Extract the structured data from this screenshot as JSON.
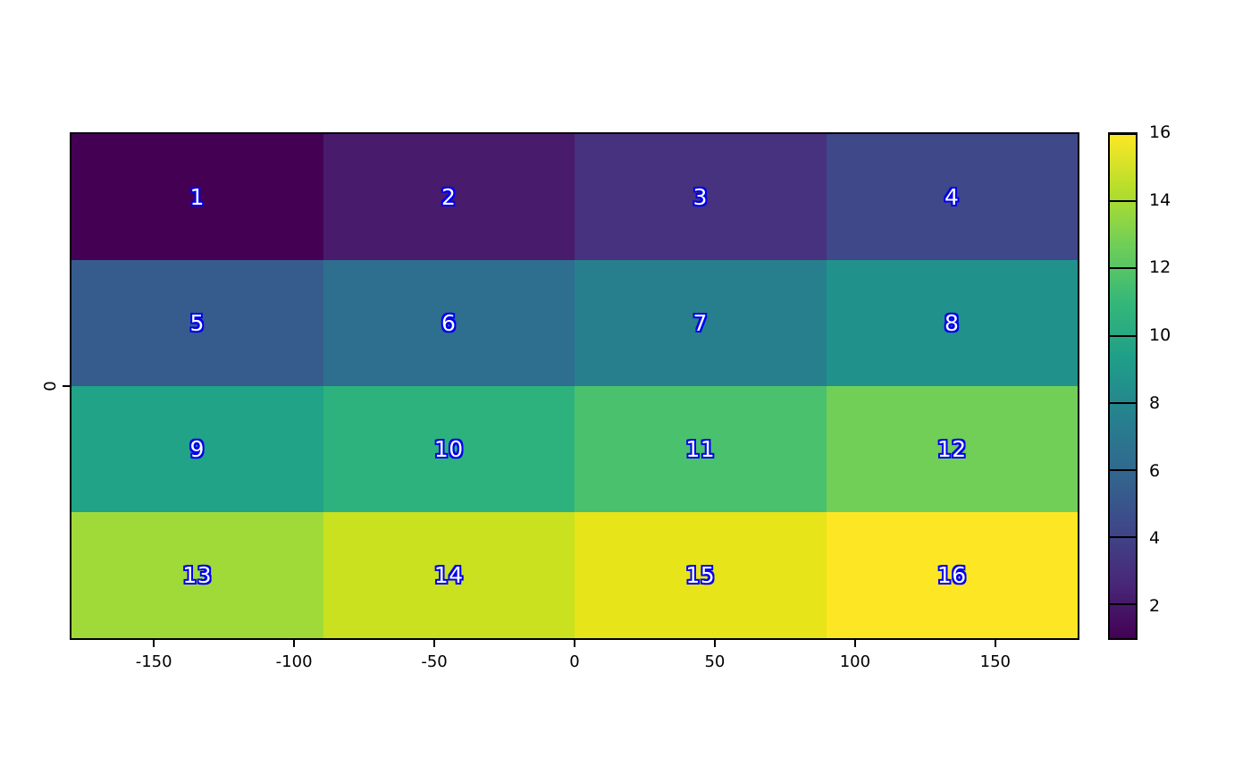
{
  "chart_data": {
    "type": "heatmap",
    "title": "",
    "xlabel": "",
    "ylabel": "",
    "colormap": "viridis",
    "x_axis": {
      "range": [
        -180,
        180
      ],
      "tick_values": [
        -150,
        -100,
        -50,
        0,
        50,
        100,
        150
      ],
      "tick_labels": [
        "-150",
        "-100",
        "-50",
        "0",
        "50",
        "100",
        "150"
      ]
    },
    "y_axis": {
      "tick_labels": [
        "0"
      ]
    },
    "grid": {
      "rows": 4,
      "cols": 4
    },
    "values": [
      [
        1,
        2,
        3,
        4
      ],
      [
        5,
        6,
        7,
        8
      ],
      [
        9,
        10,
        11,
        12
      ],
      [
        13,
        14,
        15,
        16
      ]
    ],
    "cell_colors": [
      [
        "#440154",
        "#481b6d",
        "#46327e",
        "#3f4889"
      ],
      [
        "#365c8d",
        "#2e6e8e",
        "#277f8e",
        "#21918c"
      ],
      [
        "#20a386",
        "#2db27d",
        "#4ac16d",
        "#71cf57"
      ],
      [
        "#a0da39",
        "#c9e11f",
        "#e7e419",
        "#fde725"
      ]
    ],
    "label_style": {
      "fill": "#ffffff",
      "outline": "#0000ee"
    },
    "colorbar": {
      "vmin": 1,
      "vmax": 16,
      "tick_values": [
        2,
        4,
        6,
        8,
        10,
        12,
        14,
        16
      ],
      "tick_labels": [
        "2",
        "4",
        "6",
        "8",
        "10",
        "12",
        "14",
        "16"
      ],
      "gradient_stops": [
        "#440154",
        "#482878",
        "#3e4989",
        "#31688e",
        "#26828e",
        "#1f9e89",
        "#35b779",
        "#6ece58",
        "#b5de2b",
        "#fde725"
      ]
    }
  }
}
